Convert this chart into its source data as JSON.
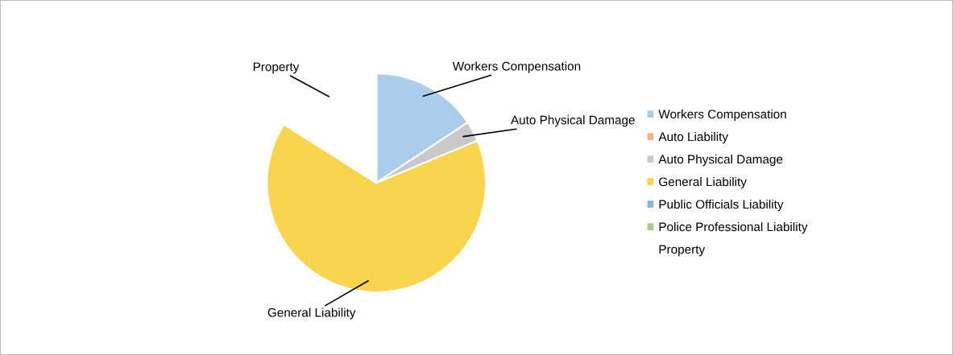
{
  "chart_data": {
    "type": "pie",
    "categories": [
      "Workers Compensation",
      "Auto Liability",
      "Auto Physical Damage",
      "General Liability",
      "Public Officials Liability",
      "Police Professional Liability",
      "Property"
    ],
    "values": [
      15.7,
      0,
      3.0,
      65.3,
      0,
      0,
      16.0
    ],
    "colors": [
      "#a9cdea",
      "#f4b183",
      "#c9c9c9",
      "#f9d44e",
      "#8db4dc",
      "#a9c98e",
      "#ffffff"
    ],
    "legend": "right"
  }
}
